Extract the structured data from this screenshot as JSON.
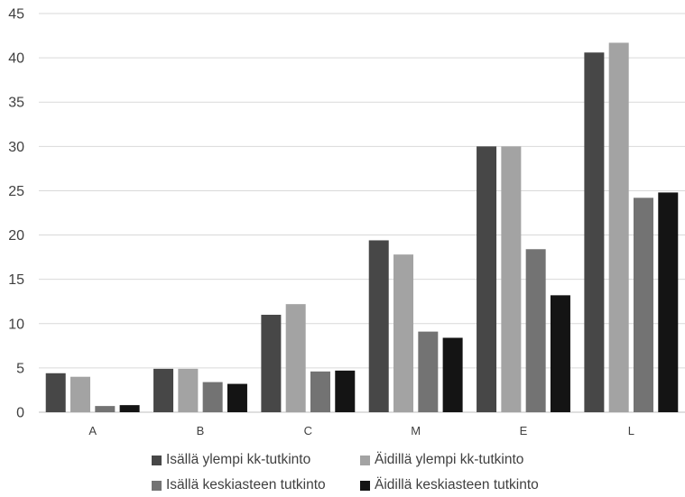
{
  "chart_data": {
    "type": "bar",
    "categories": [
      "A",
      "B",
      "C",
      "M",
      "E",
      "L"
    ],
    "series": [
      {
        "name": "Isällä ylempi kk-tutkinto",
        "color": "#474747",
        "values": [
          4.4,
          4.9,
          11.0,
          19.4,
          30.0,
          40.6
        ]
      },
      {
        "name": "Äidillä ylempi kk-tutkinto",
        "color": "#a3a3a3",
        "values": [
          4.0,
          4.9,
          12.2,
          17.8,
          30.0,
          41.7
        ]
      },
      {
        "name": "Isällä keskiasteen tutkinto",
        "color": "#737373",
        "values": [
          0.7,
          3.4,
          4.6,
          9.1,
          18.4,
          24.2
        ]
      },
      {
        "name": "Äidillä keskiasteen tutkinto",
        "color": "#141414",
        "values": [
          0.8,
          3.2,
          4.7,
          8.4,
          13.2,
          24.8
        ]
      }
    ],
    "ylim": [
      0,
      45
    ],
    "yticks": [
      0,
      5,
      10,
      15,
      20,
      25,
      30,
      35,
      40,
      45
    ],
    "grid": true,
    "legend_position": "bottom"
  }
}
